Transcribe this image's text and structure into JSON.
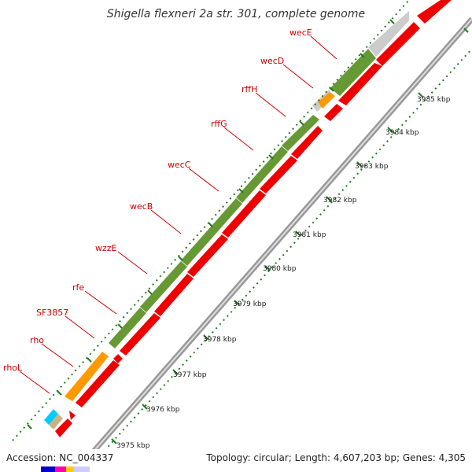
{
  "title": "Shigella flexneri 2a str. 301, complete genome",
  "footer": {
    "accession": "Accession: NC_004337",
    "summary": "Topology: circular; Length: 4,607,203 bp; Genes: 4,305"
  },
  "colors": {
    "cds": "#ee0000",
    "cog_green": "#669933",
    "cog_orange": "#ff9900",
    "cog_cyan": "#00ccff",
    "cog_tan": "#c8b482",
    "no_cog": "#cccccc",
    "backbone": "#999999",
    "gc_dots": "#1f7a1f",
    "label_lines": "#cc0000"
  },
  "genes": [
    "rhoL",
    "rho",
    "SF3857",
    "rfe",
    "wzzE",
    "wecB",
    "wecC",
    "rffG",
    "rffH",
    "wecD",
    "wecE"
  ],
  "kbp_ticks": [
    "3975 kbp",
    "3976 kbp",
    "3977 kbp",
    "3978 kbp",
    "3979 kbp",
    "3980 kbp",
    "3981 kbp",
    "3982 kbp",
    "3983 kbp",
    "3984 kbp",
    "3985 kbp"
  ]
}
